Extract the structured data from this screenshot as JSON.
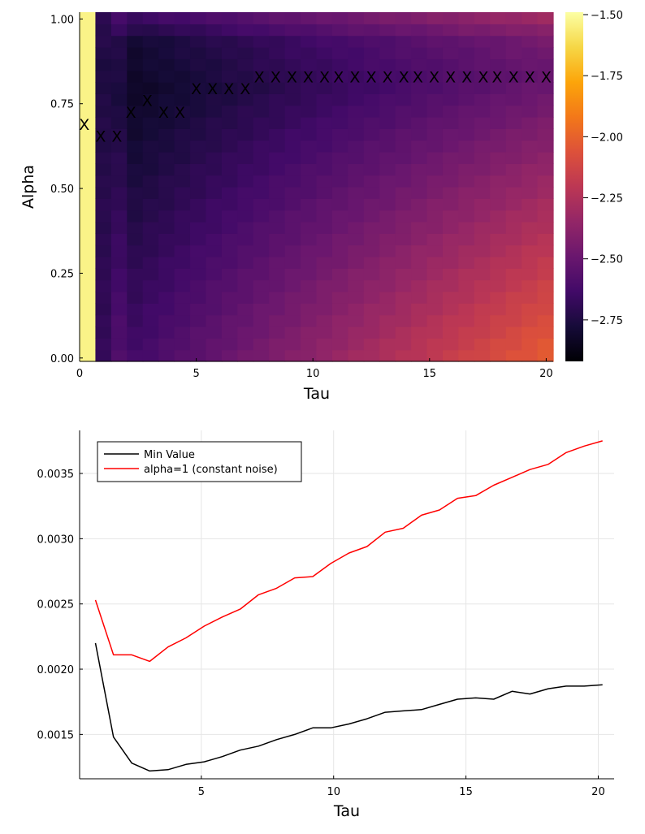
{
  "chart_data": [
    {
      "type": "heatmap",
      "xlabel": "Tau",
      "ylabel": "Alpha",
      "xlim": [
        0,
        20.3
      ],
      "ylim": [
        -0.01,
        1.02
      ],
      "xticks": [
        "0",
        "5",
        "10",
        "15",
        "20"
      ],
      "yticks": [
        "0.00",
        "0.25",
        "0.50",
        "0.75",
        "1.00"
      ],
      "colormap": "inferno",
      "colorbar_range": [
        -2.92,
        -1.49
      ],
      "colorbar_ticks": [
        "-1.50",
        "-1.75",
        "-2.00",
        "-2.25",
        "-2.50",
        "-2.75"
      ],
      "marker_color": "#ff0000",
      "marker_symbol": "X",
      "minima": {
        "tau": [
          0.2,
          0.9,
          1.6,
          2.2,
          2.9,
          3.6,
          4.3,
          5.0,
          5.7,
          6.4,
          7.1,
          7.7,
          8.4,
          9.1,
          9.8,
          10.5,
          11.1,
          11.8,
          12.5,
          13.2,
          13.9,
          14.5,
          15.2,
          15.9,
          16.6,
          17.3,
          17.9,
          18.6,
          19.3,
          20.0
        ],
        "alpha": [
          0.69,
          0.655,
          0.655,
          0.725,
          0.76,
          0.725,
          0.725,
          0.795,
          0.795,
          0.795,
          0.795,
          0.83,
          0.83,
          0.83,
          0.83,
          0.83,
          0.83,
          0.83,
          0.83,
          0.83,
          0.83,
          0.83,
          0.83,
          0.83,
          0.83,
          0.83,
          0.83,
          0.83,
          0.83,
          0.83
        ]
      }
    },
    {
      "type": "line",
      "xlabel": "Tau",
      "ylabel": "",
      "xlim": [
        0.4,
        20.6
      ],
      "ylim": [
        0.00116,
        0.00383
      ],
      "xticks": [
        5,
        10,
        15,
        20
      ],
      "yticks": [
        "0.0015",
        "0.0020",
        "0.0025",
        "0.0030",
        "0.0035"
      ],
      "grid": true,
      "legend_position": "top-left",
      "x": [
        1.0,
        1.68,
        2.37,
        3.05,
        3.74,
        4.42,
        5.11,
        5.79,
        6.47,
        7.16,
        7.84,
        8.53,
        9.21,
        9.89,
        10.58,
        11.26,
        11.95,
        12.63,
        13.32,
        14.0,
        14.68,
        15.37,
        16.05,
        16.74,
        17.42,
        18.11,
        18.79,
        19.47,
        20.16
      ],
      "series": [
        {
          "name": "Min Value",
          "color": "#000000",
          "values": [
            0.0022,
            0.00148,
            0.00128,
            0.00122,
            0.00123,
            0.00127,
            0.00129,
            0.00133,
            0.00138,
            0.00141,
            0.00146,
            0.0015,
            0.00155,
            0.00155,
            0.00158,
            0.00162,
            0.00167,
            0.00168,
            0.00169,
            0.00173,
            0.00177,
            0.00178,
            0.00177,
            0.00183,
            0.00181,
            0.00185,
            0.00187,
            0.00187,
            0.00188
          ]
        },
        {
          "name": "alpha=1 (constant noise)",
          "color": "#ff0000",
          "values": [
            0.00253,
            0.00211,
            0.00211,
            0.00206,
            0.00217,
            0.00224,
            0.00233,
            0.0024,
            0.00246,
            0.00257,
            0.00262,
            0.0027,
            0.00271,
            0.00281,
            0.00289,
            0.00294,
            0.00305,
            0.00308,
            0.00318,
            0.00322,
            0.00331,
            0.00333,
            0.00341,
            0.00347,
            0.00353,
            0.00357,
            0.00366,
            0.00371,
            0.00375
          ]
        }
      ]
    }
  ]
}
